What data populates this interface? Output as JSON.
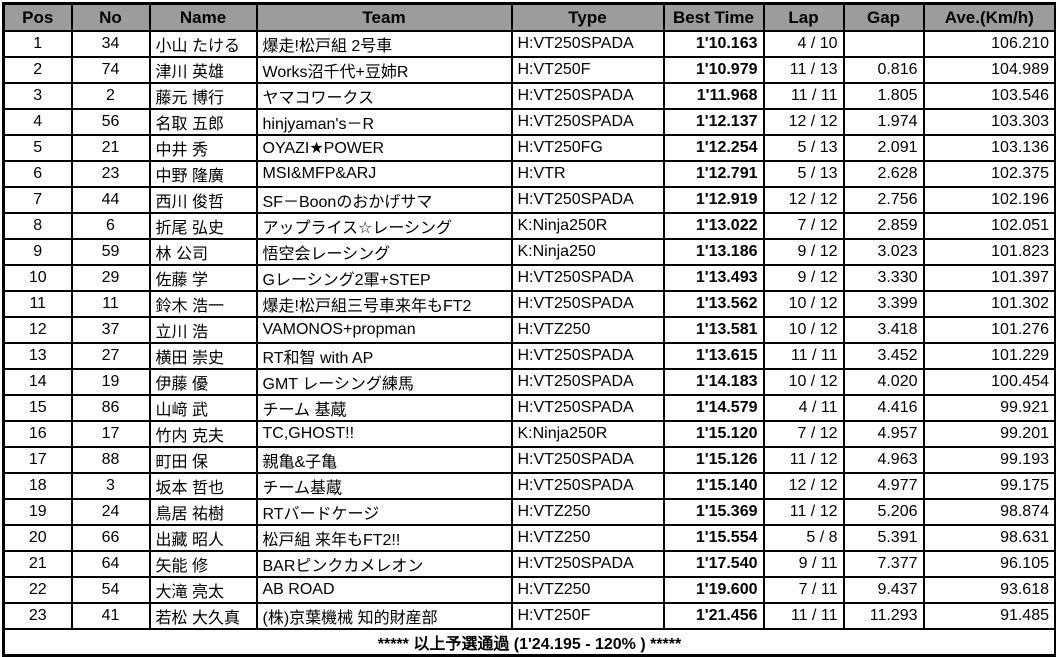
{
  "colors": {
    "header_bg": "#9c9c9c",
    "pos_col_bg": "#ffff99",
    "border": "#000000",
    "row_bg": "#ffffff"
  },
  "header": {
    "pos": "Pos",
    "no": "No",
    "name": "Name",
    "team": "Team",
    "type": "Type",
    "best_time": "Best Time",
    "lap": "Lap",
    "gap": "Gap",
    "ave": "Ave.(Km/h)"
  },
  "rows": [
    {
      "pos": "1",
      "no": "34",
      "name": "小山 たける",
      "team": "爆走!松戸組 2号車",
      "type": "H:VT250SPADA",
      "best_time": "1'10.163",
      "lap": "4 / 10",
      "gap": "",
      "ave": "106.210"
    },
    {
      "pos": "2",
      "no": "74",
      "name": "津川 英雄",
      "team": "Works沼千代+豆姉R",
      "type": "H:VT250F",
      "best_time": "1'10.979",
      "lap": "11 / 13",
      "gap": "0.816",
      "ave": "104.989"
    },
    {
      "pos": "3",
      "no": "2",
      "name": "藤元 博行",
      "team": "ヤマコワークス",
      "type": "H:VT250SPADA",
      "best_time": "1'11.968",
      "lap": "11 / 11",
      "gap": "1.805",
      "ave": "103.546"
    },
    {
      "pos": "4",
      "no": "56",
      "name": "名取 五郎",
      "team": "hinjyaman's－R",
      "type": "H:VT250SPADA",
      "best_time": "1'12.137",
      "lap": "12 / 12",
      "gap": "1.974",
      "ave": "103.303"
    },
    {
      "pos": "5",
      "no": "21",
      "name": "中井 秀",
      "team": "OYAZI★POWER",
      "type": "H:VT250FG",
      "best_time": "1'12.254",
      "lap": "5 / 13",
      "gap": "2.091",
      "ave": "103.136"
    },
    {
      "pos": "6",
      "no": "23",
      "name": "中野 隆廣",
      "team": "MSI&MFP&ARJ",
      "type": "H:VTR",
      "best_time": "1'12.791",
      "lap": "5 / 13",
      "gap": "2.628",
      "ave": "102.375"
    },
    {
      "pos": "7",
      "no": "44",
      "name": "西川 俊哲",
      "team": "SF－Boonのおかげサマ",
      "type": "H:VT250SPADA",
      "best_time": "1'12.919",
      "lap": "12 / 12",
      "gap": "2.756",
      "ave": "102.196"
    },
    {
      "pos": "8",
      "no": "6",
      "name": "折尾 弘史",
      "team": "アップライス☆レーシング",
      "type": "K:Ninja250R",
      "best_time": "1'13.022",
      "lap": "7 / 12",
      "gap": "2.859",
      "ave": "102.051"
    },
    {
      "pos": "9",
      "no": "59",
      "name": "林 公司",
      "team": "悟空会レーシング",
      "type": "K:Ninja250",
      "best_time": "1'13.186",
      "lap": "9 / 12",
      "gap": "3.023",
      "ave": "101.823"
    },
    {
      "pos": "10",
      "no": "29",
      "name": "佐藤 学",
      "team": "Gレーシング2軍+STEP",
      "type": "H:VT250SPADA",
      "best_time": "1'13.493",
      "lap": "9 / 12",
      "gap": "3.330",
      "ave": "101.397"
    },
    {
      "pos": "11",
      "no": "11",
      "name": "鈴木 浩一",
      "team": "爆走!松戸組三号車来年もFT2",
      "type": "H:VT250SPADA",
      "best_time": "1'13.562",
      "lap": "10 / 12",
      "gap": "3.399",
      "ave": "101.302"
    },
    {
      "pos": "12",
      "no": "37",
      "name": "立川 浩",
      "team": "VAMONOS+propman",
      "type": "H:VTZ250",
      "best_time": "1'13.581",
      "lap": "10 / 12",
      "gap": "3.418",
      "ave": "101.276"
    },
    {
      "pos": "13",
      "no": "27",
      "name": "横田 崇史",
      "team": "RT和智 with AP",
      "type": "H:VT250SPADA",
      "best_time": "1'13.615",
      "lap": "11 / 11",
      "gap": "3.452",
      "ave": "101.229"
    },
    {
      "pos": "14",
      "no": "19",
      "name": "伊藤 優",
      "team": "GMT レーシング練馬",
      "type": "H:VT250SPADA",
      "best_time": "1'14.183",
      "lap": "10 / 12",
      "gap": "4.020",
      "ave": "100.454"
    },
    {
      "pos": "15",
      "no": "86",
      "name": "山﨑 武",
      "team": "チーム 基蔵",
      "type": "H:VT250SPADA",
      "best_time": "1'14.579",
      "lap": "4 / 11",
      "gap": "4.416",
      "ave": "99.921"
    },
    {
      "pos": "16",
      "no": "17",
      "name": "竹内 克夫",
      "team": "TC,GHOST!!",
      "type": "K:Ninja250R",
      "best_time": "1'15.120",
      "lap": "7 / 12",
      "gap": "4.957",
      "ave": "99.201"
    },
    {
      "pos": "17",
      "no": "88",
      "name": "町田 保",
      "team": "親亀&子亀",
      "type": "H:VT250SPADA",
      "best_time": "1'15.126",
      "lap": "11 / 12",
      "gap": "4.963",
      "ave": "99.193"
    },
    {
      "pos": "18",
      "no": "3",
      "name": "坂本 哲也",
      "team": "チーム基蔵",
      "type": "H:VT250SPADA",
      "best_time": "1'15.140",
      "lap": "12 / 12",
      "gap": "4.977",
      "ave": "99.175"
    },
    {
      "pos": "19",
      "no": "24",
      "name": "鳥居 祐樹",
      "team": "RTバードケージ",
      "type": "H:VTZ250",
      "best_time": "1'15.369",
      "lap": "11 / 12",
      "gap": "5.206",
      "ave": "98.874"
    },
    {
      "pos": "20",
      "no": "66",
      "name": "出藏 昭人",
      "team": "松戸組 来年もFT2!!",
      "type": "H:VTZ250",
      "best_time": "1'15.554",
      "lap": "5 / 8",
      "gap": "5.391",
      "ave": "98.631"
    },
    {
      "pos": "21",
      "no": "64",
      "name": "矢能 修",
      "team": "BARピンクカメレオン",
      "type": "H:VT250SPADA",
      "best_time": "1'17.540",
      "lap": "9 / 11",
      "gap": "7.377",
      "ave": "96.105"
    },
    {
      "pos": "22",
      "no": "54",
      "name": "大滝 亮太",
      "team": "AB ROAD",
      "type": "H:VTZ250",
      "best_time": "1'19.600",
      "lap": "7 / 11",
      "gap": "9.437",
      "ave": "93.618"
    },
    {
      "pos": "23",
      "no": "41",
      "name": "若松 大久真",
      "team": "(株)京葉機械 知的財産部",
      "type": "H:VT250F",
      "best_time": "1'21.456",
      "lap": "11 / 11",
      "gap": "11.293",
      "ave": "91.485"
    }
  ],
  "footer": {
    "text": "***** 以上予選通過 (1'24.195 - 120% ) *****"
  }
}
